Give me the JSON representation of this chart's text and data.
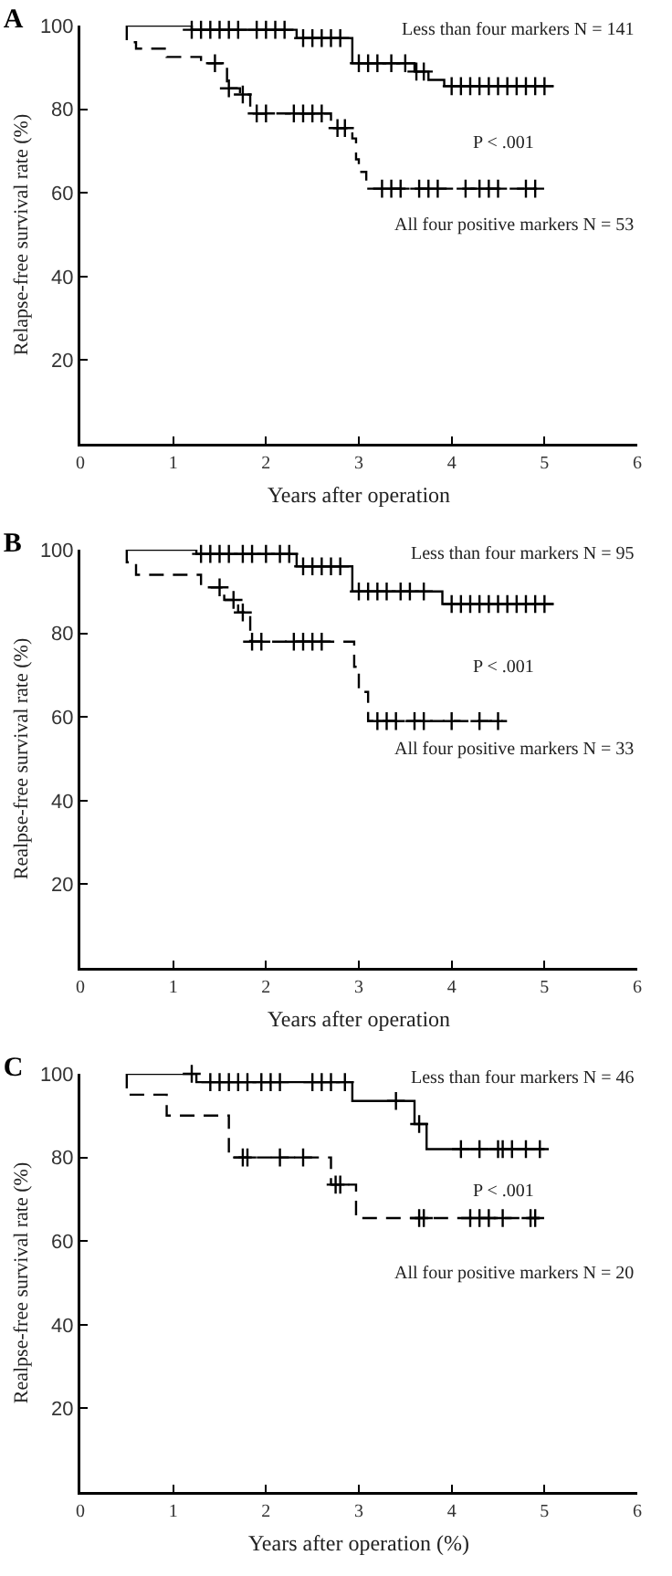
{
  "chart_data": [
    {
      "type": "step",
      "title": "A",
      "xlabel": "Years after operation",
      "ylabel": "Relapse-free survival rate (%)",
      "xlim": [
        0,
        6
      ],
      "xticks": [
        0,
        1,
        2,
        3,
        4,
        5,
        6
      ],
      "ylim": [
        0,
        100
      ],
      "yticks": [
        20,
        40,
        60,
        80,
        100
      ],
      "grid": false,
      "series": [
        {
          "color": "#000000",
          "line_style": "solid",
          "x": [
            0.5,
            1.2,
            2.33,
            2.93,
            3.6,
            3.75,
            3.92,
            5.1
          ],
          "values": [
            100,
            99,
            97,
            91,
            89,
            87,
            85.5,
            85.5
          ]
        },
        {
          "color": "#000000",
          "line_style": "dashed",
          "x": [
            0.5,
            0.5,
            0.6,
            0.93,
            1.3,
            1.58,
            1.72,
            1.83,
            2.7,
            2.93,
            2.97,
            3.0,
            3.08,
            4.92
          ],
          "values": [
            100,
            96,
            94.5,
            92.5,
            91,
            85,
            83.5,
            79,
            75.5,
            73,
            68,
            65,
            61,
            61
          ]
        },
        {
          "type": "scatter",
          "marker": "cross",
          "color": "#000000",
          "x": [
            1.2,
            1.3,
            1.4,
            1.5,
            1.6,
            1.7,
            1.9,
            2.0,
            2.1,
            2.2,
            2.4,
            2.5,
            2.6,
            2.7,
            2.8,
            3.0,
            3.1,
            3.2,
            3.35,
            3.5,
            3.62,
            3.7,
            4.0,
            4.1,
            4.2,
            4.3,
            4.4,
            4.5,
            4.6,
            4.7,
            4.8,
            4.9,
            5.0
          ],
          "values": [
            99,
            99,
            99,
            99,
            99,
            99,
            99,
            99,
            99,
            99,
            97,
            97,
            97,
            97,
            97,
            91,
            91,
            91,
            91,
            91,
            89,
            89,
            85.5,
            85.5,
            85.5,
            85.5,
            85.5,
            85.5,
            85.5,
            85.5,
            85.5,
            85.5,
            85.5
          ]
        },
        {
          "type": "scatter",
          "marker": "cross",
          "color": "#000000",
          "x": [
            1.45,
            1.6,
            1.75,
            1.9,
            2.0,
            2.3,
            2.4,
            2.5,
            2.6,
            2.77,
            2.85,
            3.25,
            3.35,
            3.45,
            3.65,
            3.75,
            3.85,
            4.15,
            4.3,
            4.4,
            4.5,
            4.8,
            4.9
          ],
          "values": [
            91,
            85,
            83.5,
            79,
            79,
            79,
            79,
            79,
            79,
            75.5,
            75.5,
            61,
            61,
            61,
            61,
            61,
            61,
            61,
            61,
            61,
            61,
            61,
            61
          ]
        }
      ],
      "annotations": [
        "Less than four markers N = 141",
        "P < .001",
        "All four positive markers N = 53"
      ]
    },
    {
      "type": "step",
      "title": "B",
      "xlabel": "Years after operation",
      "ylabel": "Realpse-free survival rate (%)",
      "xlim": [
        0,
        6
      ],
      "xticks": [
        0,
        1,
        2,
        3,
        4,
        5,
        6
      ],
      "ylim": [
        0,
        100
      ],
      "yticks": [
        20,
        40,
        60,
        80,
        100
      ],
      "grid": false,
      "series": [
        {
          "color": "#000000",
          "line_style": "solid",
          "x": [
            0.5,
            1.25,
            2.33,
            2.93,
            3.9,
            5.1
          ],
          "values": [
            100,
            99,
            96,
            90,
            87,
            87
          ]
        },
        {
          "color": "#000000",
          "line_style": "dashed",
          "x": [
            0.5,
            0.5,
            0.6,
            1.3,
            1.55,
            1.7,
            1.83,
            2.95,
            3.0,
            3.1,
            4.55
          ],
          "values": [
            100,
            97,
            94,
            91,
            88,
            85,
            78,
            72,
            66,
            59,
            59
          ]
        },
        {
          "type": "scatter",
          "marker": "cross",
          "color": "#000000",
          "x": [
            1.3,
            1.4,
            1.5,
            1.6,
            1.75,
            1.85,
            2.0,
            2.15,
            2.25,
            2.4,
            2.5,
            2.6,
            2.7,
            2.8,
            3.0,
            3.1,
            3.2,
            3.3,
            3.45,
            3.55,
            3.7,
            4.0,
            4.1,
            4.2,
            4.3,
            4.4,
            4.5,
            4.6,
            4.7,
            4.8,
            4.9,
            5.0
          ],
          "values": [
            99,
            99,
            99,
            99,
            99,
            99,
            99,
            99,
            99,
            96,
            96,
            96,
            96,
            96,
            90,
            90,
            90,
            90,
            90,
            90,
            90,
            87,
            87,
            87,
            87,
            87,
            87,
            87,
            87,
            87,
            87,
            87
          ]
        },
        {
          "type": "scatter",
          "marker": "cross",
          "color": "#000000",
          "x": [
            1.5,
            1.65,
            1.75,
            1.85,
            1.95,
            2.3,
            2.4,
            2.5,
            2.6,
            3.2,
            3.3,
            3.4,
            3.6,
            3.7,
            4.0,
            4.3,
            4.5
          ],
          "values": [
            91,
            88,
            85,
            78,
            78,
            78,
            78,
            78,
            78,
            59,
            59,
            59,
            59,
            59,
            59,
            59,
            59
          ]
        }
      ],
      "annotations": [
        "Less than four markers N = 95",
        "P < .001",
        "All four positive markers N = 33"
      ]
    },
    {
      "type": "step",
      "title": "C",
      "xlabel": "Years after operation (%)",
      "ylabel": "Realpse-free survival rate (%)",
      "xlim": [
        0,
        6
      ],
      "xticks": [
        0,
        1,
        2,
        3,
        4,
        5,
        6
      ],
      "ylim": [
        0,
        100
      ],
      "yticks": [
        20,
        40,
        60,
        80,
        100
      ],
      "grid": false,
      "series": [
        {
          "color": "#000000",
          "line_style": "solid",
          "x": [
            0.5,
            1.25,
            2.93,
            3.6,
            3.73,
            5.0
          ],
          "values": [
            100,
            98,
            93.5,
            88,
            82,
            82
          ]
        },
        {
          "color": "#000000",
          "line_style": "dashed",
          "x": [
            0.5,
            0.5,
            0.93,
            1.6,
            2.7,
            2.97,
            4.95
          ],
          "values": [
            100,
            95,
            90,
            80,
            73.5,
            65.5,
            65.5
          ]
        },
        {
          "type": "scatter",
          "marker": "cross",
          "color": "#000000",
          "x": [
            1.2,
            1.4,
            1.5,
            1.6,
            1.7,
            1.8,
            1.95,
            2.05,
            2.15,
            2.5,
            2.6,
            2.7,
            2.85,
            3.4,
            3.65,
            4.1,
            4.3,
            4.5,
            4.55,
            4.65,
            4.8,
            4.95
          ],
          "values": [
            100,
            98,
            98,
            98,
            98,
            98,
            98,
            98,
            98,
            98,
            98,
            98,
            98,
            93.5,
            88,
            82,
            82,
            82,
            82,
            82,
            82,
            82
          ]
        },
        {
          "type": "scatter",
          "marker": "cross",
          "color": "#000000",
          "x": [
            1.75,
            1.8,
            2.15,
            2.4,
            2.75,
            2.8,
            3.65,
            3.7,
            4.2,
            4.3,
            4.4,
            4.55,
            4.85,
            4.9
          ],
          "values": [
            80,
            80,
            80,
            80,
            73.5,
            73.5,
            65.5,
            65.5,
            65.5,
            65.5,
            65.5,
            65.5,
            65.5,
            65.5
          ]
        }
      ],
      "annotations": [
        "Less than four markers N = 46",
        "P < .001",
        "All four positive markers N = 20"
      ]
    }
  ]
}
